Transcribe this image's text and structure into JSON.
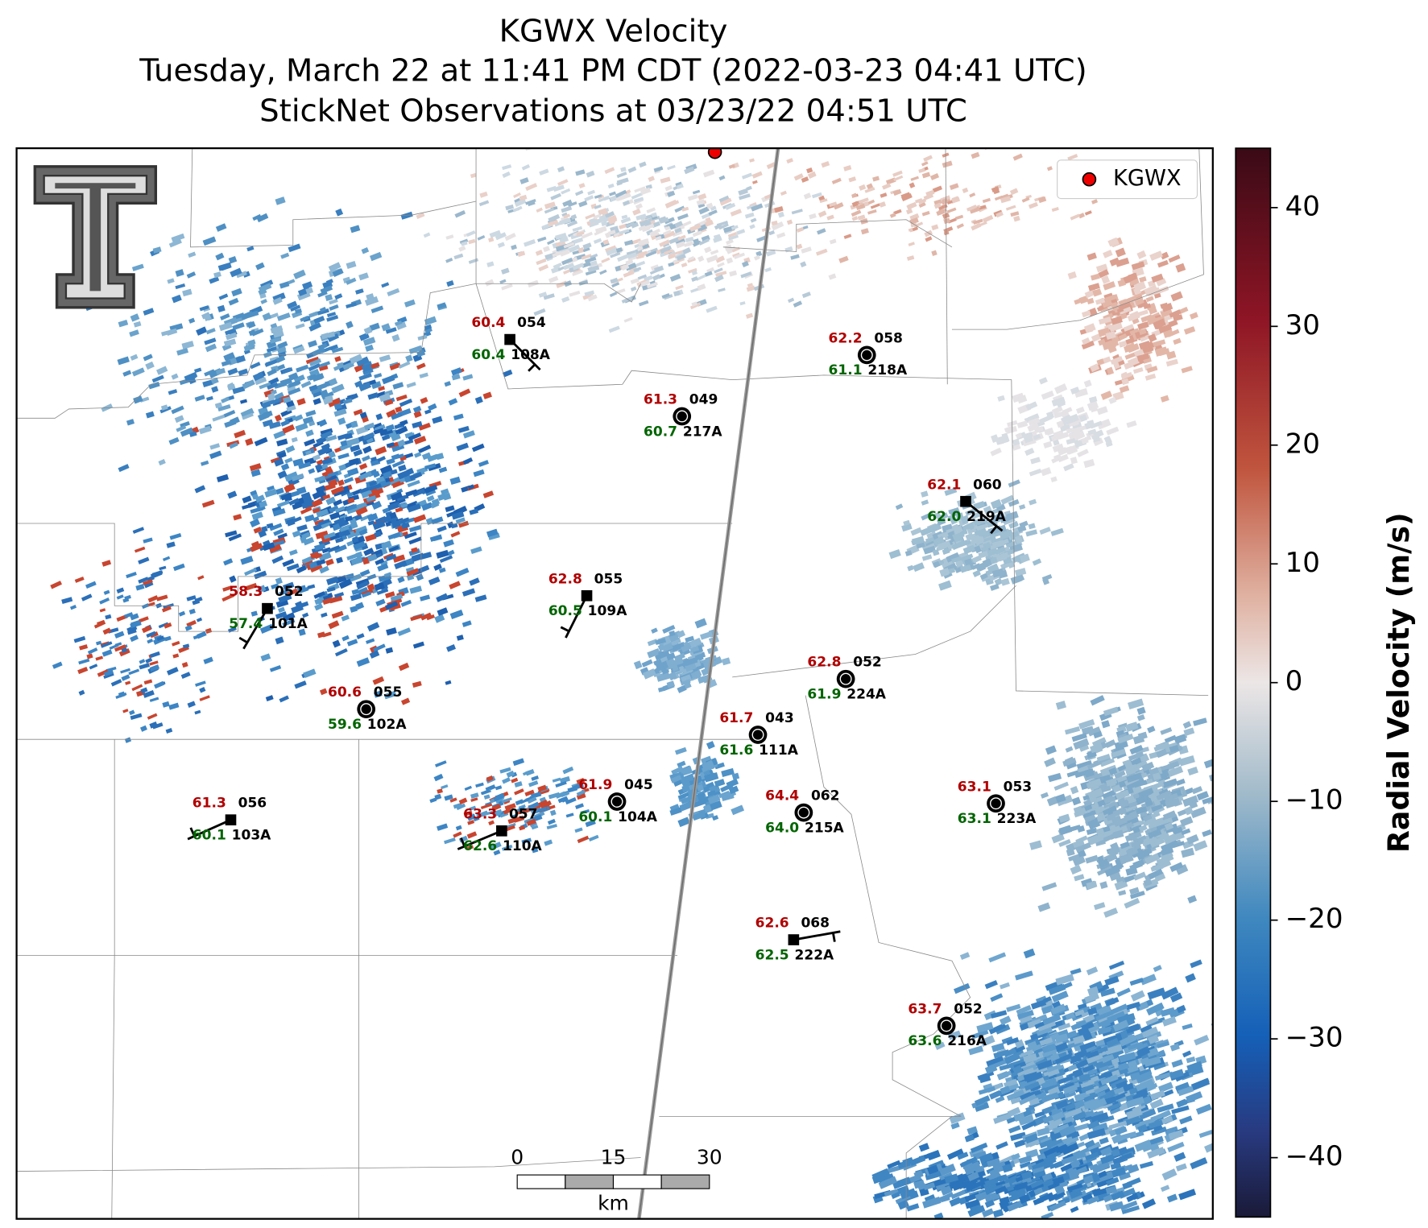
{
  "title_lines": [
    "KGWX Velocity",
    "Tuesday, March 22 at 11:41 PM CDT (2022-03-23 04:41 UTC)",
    "StickNet Observations at 03/23/22 04:51 UTC"
  ],
  "legend": {
    "label": "KGWX"
  },
  "colorbar": {
    "label": "Radial Velocity (m/s)",
    "lim": [
      -45,
      45
    ],
    "ticks": [
      40,
      30,
      20,
      10,
      0,
      {
        "value": -10,
        "label": "−10"
      },
      {
        "value": -20,
        "label": "−20"
      },
      {
        "value": -30,
        "label": "−30"
      },
      {
        "value": -40,
        "label": "−40"
      }
    ]
  },
  "scale_bar": {
    "ticks": [
      0,
      15,
      30
    ],
    "unit": "km"
  },
  "stations": [
    {
      "id": "108A",
      "temperature": "60.4",
      "dewpoint": "60.4",
      "wind_dir": "054"
    },
    {
      "id": "218A",
      "temperature": "62.2",
      "dewpoint": "61.1",
      "wind_dir": "058"
    },
    {
      "id": "217A",
      "temperature": "61.3",
      "dewpoint": "60.7",
      "wind_dir": "049"
    },
    {
      "id": "219A",
      "temperature": "62.1",
      "dewpoint": "62.0",
      "wind_dir": "060"
    },
    {
      "id": "109A",
      "temperature": "62.8",
      "dewpoint": "60.5",
      "wind_dir": "055"
    },
    {
      "id": "101A",
      "temperature": "58.3",
      "dewpoint": "57.4",
      "wind_dir": "052"
    },
    {
      "id": "224A",
      "temperature": "62.8",
      "dewpoint": "61.9",
      "wind_dir": "052"
    },
    {
      "id": "102A",
      "temperature": "60.6",
      "dewpoint": "59.6",
      "wind_dir": "055"
    },
    {
      "id": "111A",
      "temperature": "61.7",
      "dewpoint": "61.6",
      "wind_dir": "043"
    },
    {
      "id": "104A",
      "temperature": "61.9",
      "dewpoint": "60.1",
      "wind_dir": "045"
    },
    {
      "id": "215A",
      "temperature": "64.4",
      "dewpoint": "64.0",
      "wind_dir": "062"
    },
    {
      "id": "223A",
      "temperature": "63.1",
      "dewpoint": "63.1",
      "wind_dir": "053"
    },
    {
      "id": "103A",
      "temperature": "61.3",
      "dewpoint": "60.1",
      "wind_dir": "056"
    },
    {
      "id": "110A",
      "temperature": "63.3",
      "dewpoint": "62.6",
      "wind_dir": "057"
    },
    {
      "id": "222A",
      "temperature": "62.6",
      "dewpoint": "62.5",
      "wind_dir": "068"
    },
    {
      "id": "216A",
      "temperature": "63.7",
      "dewpoint": "63.6",
      "wind_dir": "052"
    }
  ]
}
